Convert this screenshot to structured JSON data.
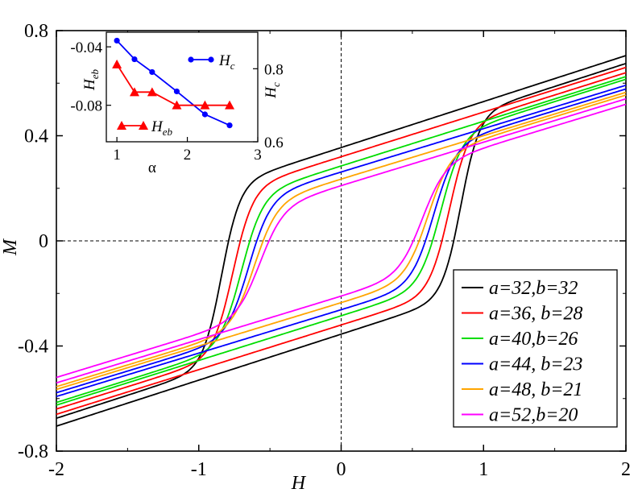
{
  "chart_data": {
    "main": {
      "type": "line",
      "xlabel": "H",
      "ylabel": "M",
      "xlim": [
        -2,
        2
      ],
      "ylim": [
        -0.8,
        0.8
      ],
      "xticks": [
        "-2",
        "-1",
        "0",
        "1",
        "2"
      ],
      "yticks": [
        "0.8",
        "0.4",
        "0",
        "-0.4",
        "-0.8"
      ],
      "legend_position": "bottom-right",
      "series": [
        {
          "name": "a=32,b=32",
          "color": "#000000",
          "M0": 0.355,
          "Hc": 0.84,
          "w": 0.13,
          "A": 0.34,
          "chi": 0.175
        },
        {
          "name": "a=36, b=28",
          "color": "#ff0000",
          "M0": 0.32,
          "Hc": 0.76,
          "w": 0.14,
          "A": 0.31,
          "chi": 0.17
        },
        {
          "name": "a=40,b=26",
          "color": "#00dd00",
          "M0": 0.285,
          "Hc": 0.7,
          "w": 0.15,
          "A": 0.28,
          "chi": 0.17
        },
        {
          "name": "a=44, b=23",
          "color": "#0000ff",
          "M0": 0.262,
          "Hc": 0.65,
          "w": 0.155,
          "A": 0.255,
          "chi": 0.165
        },
        {
          "name": "a=48, b=21",
          "color": "#ffa500",
          "M0": 0.235,
          "Hc": 0.61,
          "w": 0.16,
          "A": 0.23,
          "chi": 0.165
        },
        {
          "name": "a=52,b=20",
          "color": "#ff00ff",
          "M0": 0.21,
          "Hc": 0.57,
          "w": 0.165,
          "A": 0.2,
          "chi": 0.165
        }
      ]
    },
    "inset": {
      "type": "line",
      "xlabel": "α",
      "xlim": [
        0.85,
        3
      ],
      "xticks": [
        "1",
        "2",
        "3"
      ],
      "left_axis": {
        "label": "H",
        "label_sub": "eb",
        "ylim": [
          -0.105,
          -0.03
        ],
        "ticks": [
          "-0.04",
          "-0.08"
        ]
      },
      "right_axis": {
        "label": "H",
        "label_sub": "c",
        "ylim": [
          0.6,
          0.9
        ],
        "ticks": [
          "0.8",
          "0.6"
        ]
      },
      "series": [
        {
          "name": "H",
          "sub": "c",
          "color": "#0000ff",
          "axis": "right",
          "marker": "circle",
          "x": [
            1.0,
            1.25,
            1.5,
            1.85,
            2.25,
            2.6
          ],
          "y": [
            0.877,
            0.826,
            0.791,
            0.738,
            0.675,
            0.645
          ]
        },
        {
          "name": "H",
          "sub": "eb",
          "color": "#ff0000",
          "axis": "left",
          "marker": "triangle",
          "x": [
            1.0,
            1.25,
            1.5,
            1.85,
            2.25,
            2.6
          ],
          "y": [
            -0.052,
            -0.071,
            -0.071,
            -0.08,
            -0.08,
            -0.08
          ]
        }
      ]
    }
  }
}
